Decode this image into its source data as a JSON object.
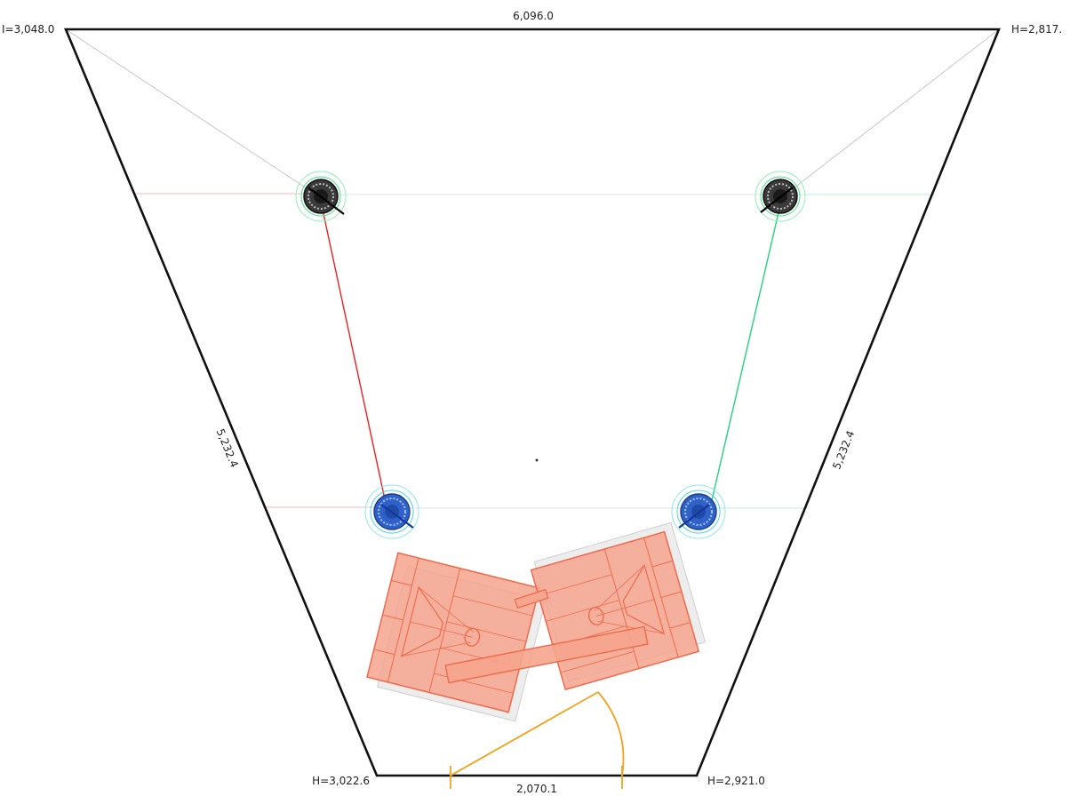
{
  "dimensions": {
    "top_width": "6,096.0",
    "left_side": "5,232.4",
    "right_side": "5,232.4",
    "bottom_width": "2,070.1"
  },
  "corners": {
    "top_left": "I=3,048.0",
    "top_right": "H=2,817.",
    "bottom_left": "H=3,022.6",
    "bottom_right": "H=2,921.0"
  },
  "colors": {
    "wall": "#111111",
    "left_channel": "#e8231e",
    "right_channel": "#22d27a",
    "sofa": "#ef6a4b",
    "sofa_fill": "#f6a58e",
    "speaker_front": "#2a2a2a",
    "speaker_rear": "#2f62c8",
    "angle_marker": "#f3a21b",
    "guide": "#bfbfbf"
  },
  "icons": {
    "speaker_front": "ceiling-speaker-icon",
    "speaker_rear": "ceiling-speaker-icon",
    "seating": "sofa-icon"
  }
}
